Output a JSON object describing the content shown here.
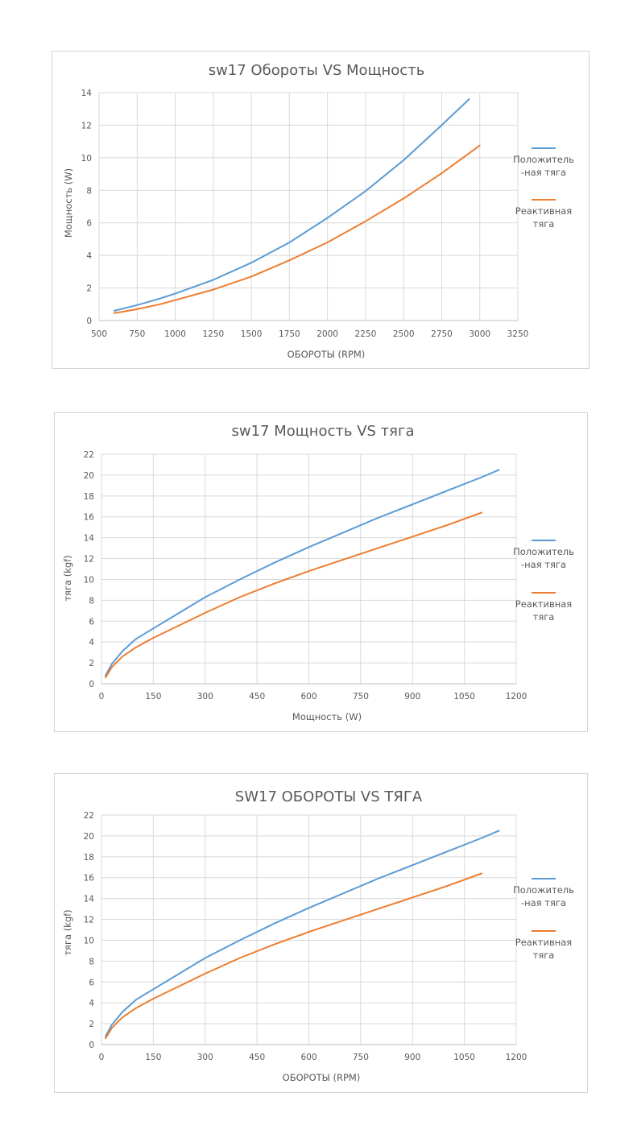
{
  "chart_data": [
    {
      "type": "line",
      "title": "sw17 Обороты VS Мощность",
      "xlabel": "ОБОРОТЫ (RPM)",
      "ylabel": "Мощность (W)",
      "xlim": [
        500,
        3250
      ],
      "ylim": [
        0,
        14
      ],
      "x_ticks": [
        500,
        750,
        1000,
        1250,
        1500,
        1750,
        2000,
        2250,
        2500,
        2750,
        3000,
        3250
      ],
      "y_ticks": [
        0,
        2,
        4,
        6,
        8,
        10,
        12,
        14
      ],
      "grid": true,
      "legend_position": "right",
      "series": [
        {
          "name": "Положитель-ная тяга",
          "legend_lines": [
            "Положитель",
            "-ная тяга"
          ],
          "color": "#5b9bd5",
          "x": [
            600,
            750,
            900,
            1000,
            1250,
            1500,
            1750,
            2000,
            2250,
            2500,
            2750,
            2930
          ],
          "y": [
            0.6,
            0.95,
            1.35,
            1.65,
            2.5,
            3.55,
            4.8,
            6.3,
            7.95,
            9.85,
            12.0,
            13.6
          ]
        },
        {
          "name": "Реактивная тяга",
          "legend_lines": [
            "Реактивная",
            "тяга"
          ],
          "color": "#ed7d31",
          "x": [
            600,
            750,
            900,
            1000,
            1250,
            1500,
            1750,
            2000,
            2250,
            2500,
            2750,
            3000
          ],
          "y": [
            0.45,
            0.7,
            1.0,
            1.25,
            1.9,
            2.7,
            3.7,
            4.8,
            6.1,
            7.5,
            9.05,
            10.75
          ]
        }
      ]
    },
    {
      "type": "line",
      "title": "sw17 Мощность VS тяга",
      "xlabel": "Мощность (W)",
      "ylabel": "тяга (kgf)",
      "xlim": [
        0,
        1200
      ],
      "ylim": [
        0,
        22
      ],
      "x_ticks": [
        0,
        150,
        300,
        450,
        600,
        750,
        900,
        1050,
        1200
      ],
      "y_ticks": [
        0,
        2,
        4,
        6,
        8,
        10,
        12,
        14,
        16,
        18,
        20,
        22
      ],
      "grid": true,
      "legend_position": "right",
      "series": [
        {
          "name": "Положитель-ная тяга",
          "legend_lines": [
            "Положитель",
            "-ная тяга"
          ],
          "color": "#5b9bd5",
          "x": [
            12,
            30,
            60,
            100,
            150,
            225,
            300,
            400,
            500,
            600,
            700,
            800,
            900,
            1000,
            1100,
            1150
          ],
          "y": [
            0.8,
            1.9,
            3.1,
            4.3,
            5.3,
            6.8,
            8.3,
            10.0,
            11.6,
            13.1,
            14.5,
            15.9,
            17.2,
            18.5,
            19.8,
            20.5
          ]
        },
        {
          "name": "Реактивная тяга",
          "legend_lines": [
            "Реактивная",
            "тяга"
          ],
          "color": "#ed7d31",
          "x": [
            12,
            30,
            60,
            100,
            150,
            225,
            300,
            400,
            500,
            600,
            700,
            800,
            900,
            1000,
            1100
          ],
          "y": [
            0.6,
            1.6,
            2.6,
            3.5,
            4.4,
            5.6,
            6.8,
            8.3,
            9.6,
            10.8,
            11.9,
            13.0,
            14.1,
            15.2,
            16.4
          ]
        }
      ]
    },
    {
      "type": "line",
      "title": "SW17 ОБОРОТЫ VS ТЯГА",
      "xlabel": "ОБОРОТЫ (RPM)",
      "ylabel": "тяга (kgf)",
      "xlim": [
        0,
        1200
      ],
      "ylim": [
        0,
        22
      ],
      "x_ticks": [
        0,
        150,
        300,
        450,
        600,
        750,
        900,
        1050,
        1200
      ],
      "y_ticks": [
        0,
        2,
        4,
        6,
        8,
        10,
        12,
        14,
        16,
        18,
        20,
        22
      ],
      "grid": true,
      "legend_position": "right",
      "series": [
        {
          "name": "Положитель-ная тяга",
          "legend_lines": [
            "Положитель",
            "-ная тяга"
          ],
          "color": "#5b9bd5",
          "x": [
            12,
            30,
            60,
            100,
            150,
            225,
            300,
            400,
            500,
            600,
            700,
            800,
            900,
            1000,
            1100,
            1150
          ],
          "y": [
            0.8,
            1.9,
            3.1,
            4.3,
            5.3,
            6.8,
            8.3,
            10.0,
            11.6,
            13.1,
            14.5,
            15.9,
            17.2,
            18.5,
            19.8,
            20.5
          ]
        },
        {
          "name": "Реактивная тяга",
          "legend_lines": [
            "Реактивная",
            "тяга"
          ],
          "color": "#ed7d31",
          "x": [
            12,
            30,
            60,
            100,
            150,
            225,
            300,
            400,
            500,
            600,
            700,
            800,
            900,
            1000,
            1100
          ],
          "y": [
            0.6,
            1.6,
            2.6,
            3.5,
            4.4,
            5.6,
            6.8,
            8.3,
            9.6,
            10.8,
            11.9,
            13.0,
            14.1,
            15.2,
            16.4
          ]
        }
      ]
    }
  ]
}
